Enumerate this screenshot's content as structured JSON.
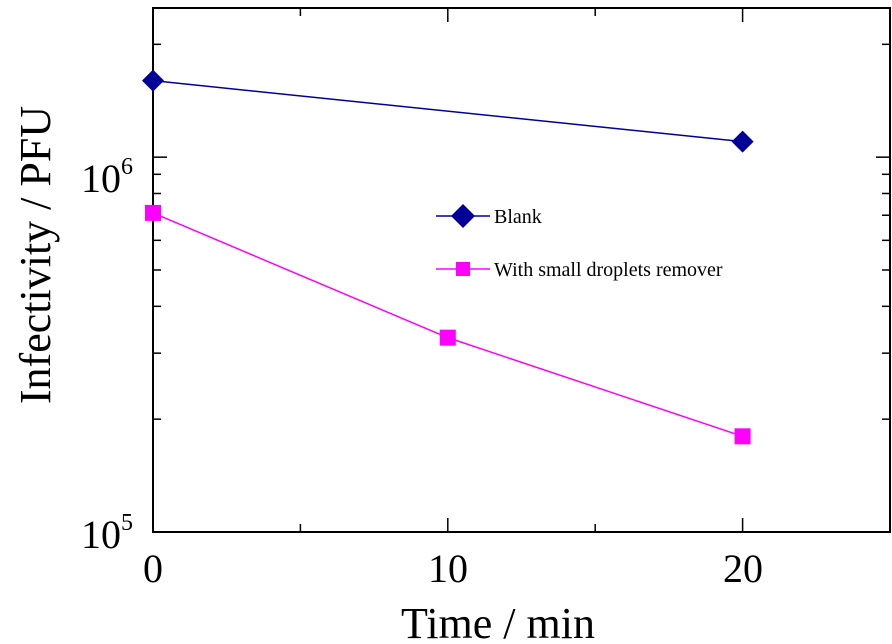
{
  "chart_data": {
    "type": "line",
    "xlabel": "Time / min",
    "ylabel": "Infectivity / PFU",
    "xlim": [
      0,
      25
    ],
    "ylim": [
      100000,
      2500000
    ],
    "yscale": "log",
    "grid": false,
    "legend_position": "center",
    "x_ticks": [
      {
        "value": 0,
        "label": "0"
      },
      {
        "value": 10,
        "label": "10"
      },
      {
        "value": 20,
        "label": "20"
      }
    ],
    "y_ticks": [
      {
        "value": 100000,
        "base": "10",
        "exp": "5"
      },
      {
        "value": 1000000,
        "base": "10",
        "exp": "6"
      }
    ],
    "series": [
      {
        "name": "Blank",
        "color": "#000099",
        "marker": "diamond",
        "x": [
          0,
          20
        ],
        "y": [
          1600000,
          1100000
        ]
      },
      {
        "name": "With small droplets remover",
        "color": "#ff00ff",
        "marker": "square",
        "x": [
          0,
          10,
          20
        ],
        "y": [
          710000,
          330000,
          180000
        ]
      }
    ]
  }
}
